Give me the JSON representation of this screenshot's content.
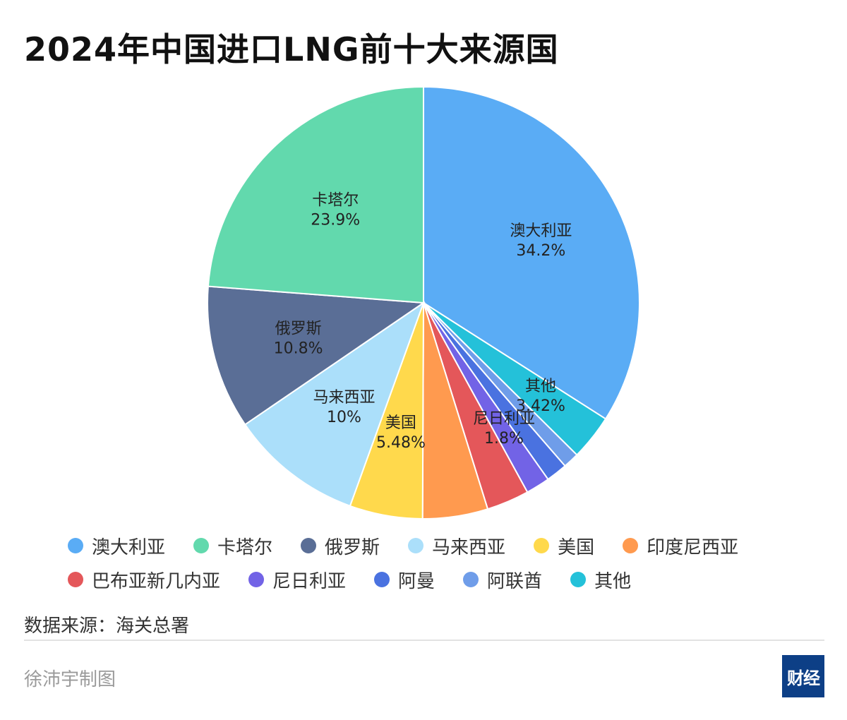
{
  "title": "2024年中国进口LNG前十大来源国",
  "source_text": "数据来源：海关总署",
  "author_text": "徐沛宇制图",
  "logo_text": "财经",
  "chart_data": {
    "type": "pie",
    "title": "2024年中国进口LNG前十大来源国",
    "start_angle_deg": 0,
    "direction": "clockwise",
    "slices": [
      {
        "name": "澳大利亚",
        "value": 34.2,
        "label": "34.2%",
        "color": "#5aacf5",
        "show_label": true
      },
      {
        "name": "其他",
        "value": 3.42,
        "label": "3.42%",
        "color": "#24c1d9",
        "show_label": true
      },
      {
        "name": "阿联酋",
        "value": 1.2,
        "label": "",
        "color": "#6f9de9",
        "show_label": false
      },
      {
        "name": "阿曼",
        "value": 1.6,
        "label": "",
        "color": "#4a72e0",
        "show_label": false
      },
      {
        "name": "尼日利亚",
        "value": 1.8,
        "label": "1.8%",
        "color": "#7263e6",
        "show_label": true
      },
      {
        "name": "巴布亚新几内亚",
        "value": 3.2,
        "label": "",
        "color": "#e4575a",
        "show_label": false
      },
      {
        "name": "印度尼西亚",
        "value": 4.9,
        "label": "",
        "color": "#ff9a4f",
        "show_label": false
      },
      {
        "name": "美国",
        "value": 5.48,
        "label": "5.48%",
        "color": "#ffd94c",
        "show_label": true
      },
      {
        "name": "马来西亚",
        "value": 10.0,
        "label": "10%",
        "color": "#abdffa",
        "show_label": true
      },
      {
        "name": "俄罗斯",
        "value": 10.8,
        "label": "10.8%",
        "color": "#5a6e96",
        "show_label": true
      },
      {
        "name": "卡塔尔",
        "value": 23.9,
        "label": "23.9%",
        "color": "#62d9ad",
        "show_label": true
      }
    ],
    "legend": [
      {
        "name": "澳大利亚",
        "color": "#5aacf5"
      },
      {
        "name": "卡塔尔",
        "color": "#62d9ad"
      },
      {
        "name": "俄罗斯",
        "color": "#5a6e96"
      },
      {
        "name": "马来西亚",
        "color": "#abdffa"
      },
      {
        "name": "美国",
        "color": "#ffd94c"
      },
      {
        "name": "印度尼西亚",
        "color": "#ff9a4f"
      },
      {
        "name": "巴布亚新几内亚",
        "color": "#e4575a"
      },
      {
        "name": "尼日利亚",
        "color": "#7263e6"
      },
      {
        "name": "阿曼",
        "color": "#4a72e0"
      },
      {
        "name": "阿联酋",
        "color": "#6f9de9"
      },
      {
        "name": "其他",
        "color": "#24c1d9"
      }
    ],
    "legend_position": "bottom"
  }
}
